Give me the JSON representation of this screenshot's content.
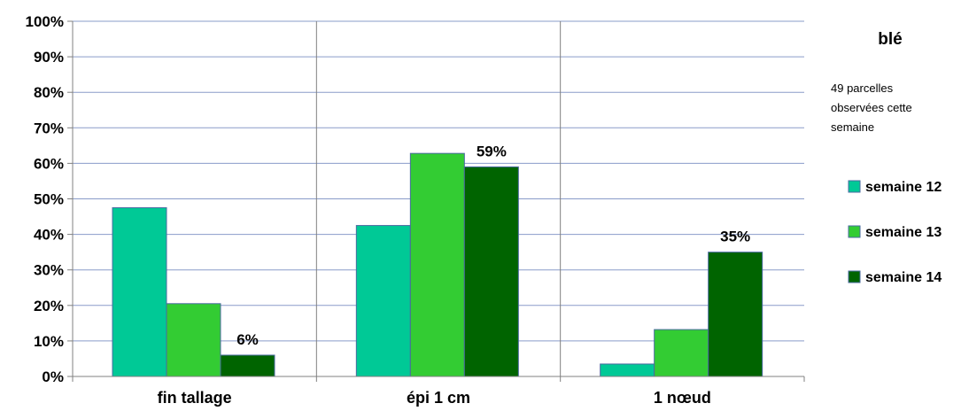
{
  "chart_data": {
    "type": "bar",
    "title": "blé",
    "subtitle_lines": [
      "49 parcelles",
      "observées cette",
      "semaine"
    ],
    "categories": [
      "fin tallage",
      "épi 1 cm",
      "1 nœud"
    ],
    "series": [
      {
        "name": "semaine 12",
        "color": "#00C996",
        "values": [
          47.5,
          42.5,
          3.5
        ]
      },
      {
        "name": "semaine 13",
        "color": "#33CC33",
        "values": [
          20.5,
          62.8,
          13.2
        ]
      },
      {
        "name": "semaine 14",
        "color": "#006400",
        "values": [
          6,
          59,
          35
        ]
      }
    ],
    "data_labels": [
      {
        "series": 2,
        "category": 0,
        "text": "6%"
      },
      {
        "series": 2,
        "category": 1,
        "text": "59%"
      },
      {
        "series": 2,
        "category": 2,
        "text": "35%"
      }
    ],
    "y_ticks": [
      "0%",
      "10%",
      "20%",
      "30%",
      "40%",
      "50%",
      "60%",
      "70%",
      "80%",
      "90%",
      "100%"
    ],
    "ylim": [
      0,
      100
    ],
    "xlabel": "",
    "ylabel": "",
    "grid": true,
    "legend_position": "right"
  }
}
